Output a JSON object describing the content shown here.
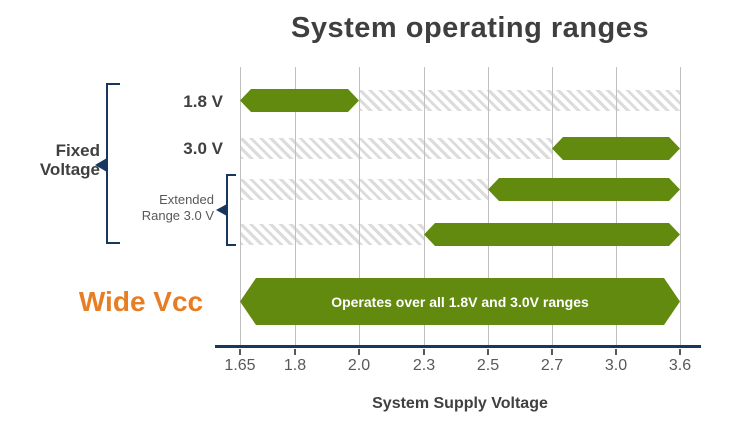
{
  "chart_data": {
    "type": "bar",
    "subtype": "horizontal-range",
    "title": "System operating ranges",
    "xlabel": "System Supply Voltage",
    "x_tick_labels": [
      "1.65",
      "1.8",
      "2.0",
      "2.3",
      "2.5",
      "2.7",
      "3.0",
      "3.6"
    ],
    "x_tick_values": [
      1.65,
      1.8,
      2.0,
      2.3,
      2.5,
      2.7,
      3.0,
      3.6
    ],
    "axis_scale": "categorical (ticks evenly spaced, non-linear voltage values)",
    "grid": "vertical gridlines at each tick",
    "legend": "none",
    "rows": [
      {
        "label": "1.8 V",
        "group": "Fixed Voltage",
        "active_range": [
          1.65,
          2.0
        ],
        "inactive_range": [
          2.0,
          3.6
        ]
      },
      {
        "label": "3.0 V",
        "group": "Fixed Voltage",
        "active_range": [
          2.7,
          3.6
        ],
        "inactive_range": [
          1.65,
          2.7
        ]
      },
      {
        "label": "",
        "group": "Extended Range 3.0 V",
        "active_range": [
          2.5,
          3.6
        ],
        "inactive_range": [
          1.65,
          2.5
        ]
      },
      {
        "label": "",
        "group": "Extended Range 3.0 V",
        "active_range": [
          2.3,
          3.6
        ],
        "inactive_range": [
          1.65,
          2.3
        ]
      },
      {
        "label": "Wide Vcc",
        "group": "Wide Vcc",
        "active_range": [
          1.65,
          3.6
        ],
        "bar_text": "Operates over all 1.8V and 3.0V ranges"
      }
    ],
    "annotations": {
      "fixed_voltage": [
        "Fixed",
        "Voltage"
      ],
      "extended_range": [
        "Extended",
        "Range 3.0 V"
      ]
    },
    "colors": {
      "active_bar_green": "#618a0f",
      "inactive_hatch_gray": "#d9d9d9",
      "gridline_gray": "#bfbfbf",
      "axis_line_navy": "#17375e",
      "bracket_navy": "#17375e",
      "title_gray": "#3f3f3f",
      "wide_vcc_orange": "#e87e24",
      "bar_text_white": "#ffffff"
    }
  }
}
